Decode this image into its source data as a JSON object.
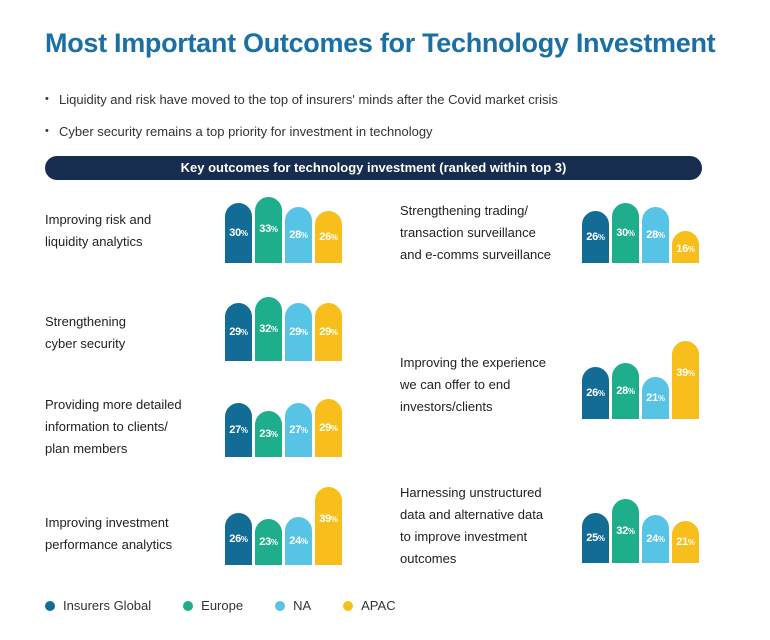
{
  "title": "Most Important Outcomes for Technology Investment",
  "bullets": [
    "Liquidity and risk have moved to the top of insurers' minds after the Covid market crisis",
    "Cyber security remains a top priority for investment in technology"
  ],
  "colors": {
    "title": "#1a6fa5",
    "banner": "#172d4f"
  },
  "chart_data": {
    "type": "bar",
    "title": "Key outcomes for technology investment (ranked within top 3)",
    "unit": "%",
    "ylim": [
      0,
      40
    ],
    "series": [
      {
        "name": "Insurers Global",
        "color": "#126c95"
      },
      {
        "name": "Europe",
        "color": "#1fae8b"
      },
      {
        "name": "NA",
        "color": "#57c4e6"
      },
      {
        "name": "APAC",
        "color": "#f8bf1c"
      }
    ],
    "categories": [
      {
        "lines": [
          "Improving risk and",
          "liquidity analytics"
        ],
        "values": [
          30,
          33,
          28,
          26
        ]
      },
      {
        "lines": [
          "Strengthening",
          "cyber security"
        ],
        "values": [
          29,
          32,
          29,
          29
        ]
      },
      {
        "lines": [
          "Providing more detailed",
          "information to clients/",
          "plan members"
        ],
        "values": [
          27,
          23,
          27,
          29
        ]
      },
      {
        "lines": [
          "Improving investment",
          "performance analytics"
        ],
        "values": [
          26,
          23,
          24,
          39
        ]
      },
      {
        "lines": [
          "Strengthening trading/",
          "transaction surveillance",
          "and e-comms surveillance"
        ],
        "values": [
          26,
          30,
          28,
          16
        ]
      },
      {
        "lines": [
          "Improving the experience",
          "we can offer to end",
          "investors/clients"
        ],
        "values": [
          26,
          28,
          21,
          39
        ]
      },
      {
        "lines": [
          "Harnessing unstructured",
          "data and alternative data",
          "to improve investment",
          "outcomes"
        ],
        "values": [
          25,
          32,
          24,
          21
        ]
      }
    ]
  }
}
